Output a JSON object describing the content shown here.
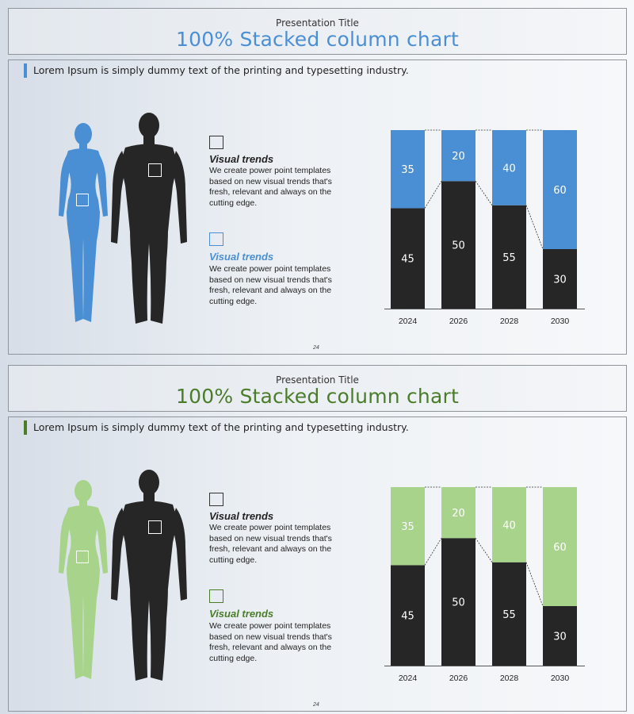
{
  "slides": [
    {
      "presentation_title": "Presentation Title",
      "main_title": "100% Stacked column chart",
      "subtitle": "Lorem Ipsum is simply dummy text of the printing and typesetting industry.",
      "blocks": [
        {
          "heading": "Visual trends",
          "body": "We create power point templates based on new visual trends that's fresh, relevant and always on the cutting edge."
        },
        {
          "heading": "Visual trends",
          "body": "We create power point templates based on new visual trends that's fresh, relevant and always on the cutting edge."
        }
      ],
      "page_number": "24",
      "colors": {
        "accent": "#4a8fd4",
        "figure_female": "#4a8fd4",
        "figure_male": "#262626"
      }
    },
    {
      "presentation_title": "Presentation Title",
      "main_title": "100% Stacked column chart",
      "subtitle": "Lorem Ipsum is simply dummy text of the printing and typesetting industry.",
      "blocks": [
        {
          "heading": "Visual trends",
          "body": "We create power point templates based on new visual trends that's fresh, relevant and always on the cutting edge."
        },
        {
          "heading": "Visual trends",
          "body": "We create power point templates based on new visual trends that's fresh, relevant and always on the cutting edge."
        }
      ],
      "page_number": "24",
      "colors": {
        "accent": "#4a7c2a",
        "figure_female": "#a7d38b",
        "figure_male": "#262626"
      }
    }
  ],
  "chart_data": [
    {
      "type": "bar",
      "stacked": "percent",
      "categories": [
        "2024",
        "2026",
        "2028",
        "2030"
      ],
      "series": [
        {
          "values": [
            45,
            50,
            55,
            30
          ],
          "color": "#262626"
        },
        {
          "values": [
            35,
            20,
            40,
            60
          ],
          "color": "#4a8fd4"
        }
      ],
      "series_lines": true,
      "legend": "none",
      "grid": false
    },
    {
      "type": "bar",
      "stacked": "percent",
      "categories": [
        "2024",
        "2026",
        "2028",
        "2030"
      ],
      "series": [
        {
          "values": [
            45,
            50,
            55,
            30
          ],
          "color": "#262626"
        },
        {
          "values": [
            35,
            20,
            40,
            60
          ],
          "color": "#a7d38b"
        }
      ],
      "series_lines": true,
      "legend": "none",
      "grid": false
    }
  ]
}
